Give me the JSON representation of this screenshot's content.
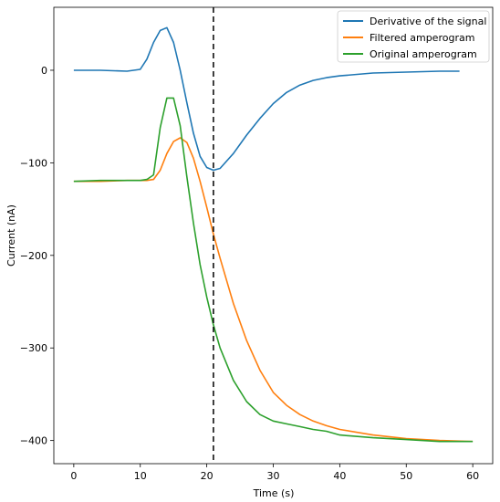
{
  "chart_data": {
    "type": "line",
    "title": "",
    "xlabel": "Time (s)",
    "ylabel": "Current (nA)",
    "xlim": [
      -3,
      63
    ],
    "ylim": [
      -425,
      68
    ],
    "x_ticks": [
      0,
      10,
      20,
      30,
      40,
      50,
      60
    ],
    "y_ticks": [
      0,
      -100,
      -200,
      -300,
      -400
    ],
    "y_tick_labels": [
      "0",
      "−100",
      "−200",
      "−300",
      "−400"
    ],
    "grid": false,
    "legend_position": "top-right",
    "vertical_line": {
      "x": 21,
      "style": "dashed",
      "color": "#000000"
    },
    "series": [
      {
        "name": "Derivative of the signal",
        "color": "#1f77b4",
        "x": [
          0,
          4,
          8,
          10,
          11,
          12,
          13,
          14,
          15,
          16,
          17,
          18,
          19,
          20,
          21,
          22,
          24,
          26,
          28,
          30,
          32,
          34,
          36,
          38,
          40,
          45,
          50,
          55,
          58
        ],
        "y": [
          0,
          0,
          -1,
          1,
          12,
          30,
          43,
          46,
          30,
          0,
          -35,
          -68,
          -93,
          -105,
          -108,
          -106,
          -90,
          -70,
          -52,
          -36,
          -24,
          -16,
          -11,
          -8,
          -6,
          -3,
          -2,
          -1,
          -1
        ]
      },
      {
        "name": "Filtered amperogram",
        "color": "#ff7f0e",
        "x": [
          0,
          4,
          8,
          10,
          11,
          12,
          13,
          14,
          15,
          16,
          17,
          18,
          19,
          20,
          21,
          22,
          24,
          26,
          28,
          30,
          32,
          34,
          36,
          38,
          40,
          45,
          50,
          55,
          60
        ],
        "y": [
          -120,
          -120,
          -119,
          -119,
          -119,
          -118,
          -108,
          -90,
          -77,
          -73,
          -78,
          -95,
          -120,
          -148,
          -177,
          -203,
          -252,
          -292,
          -324,
          -348,
          -362,
          -372,
          -379,
          -384,
          -388,
          -394,
          -398,
          -400,
          -401
        ]
      },
      {
        "name": "Original amperogram",
        "color": "#2ca02c",
        "x": [
          0,
          4,
          8,
          10,
          11,
          12,
          13,
          14,
          15,
          16,
          17,
          18,
          19,
          20,
          21,
          22,
          24,
          26,
          28,
          30,
          32,
          34,
          36,
          38,
          40,
          45,
          50,
          55,
          60
        ],
        "y": [
          -120,
          -119,
          -119,
          -119,
          -118,
          -113,
          -62,
          -30,
          -30,
          -60,
          -115,
          -165,
          -210,
          -245,
          -275,
          -300,
          -335,
          -358,
          -372,
          -379,
          -382,
          -385,
          -388,
          -390,
          -394,
          -397,
          -399,
          -401,
          -401
        ]
      }
    ]
  }
}
